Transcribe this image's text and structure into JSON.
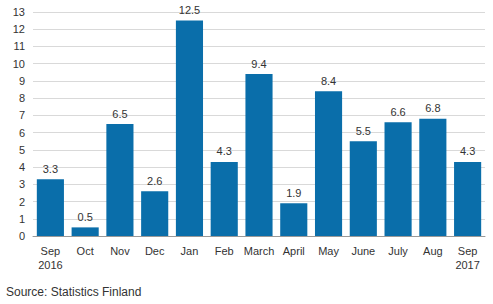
{
  "chart_data": {
    "type": "bar",
    "categories": [
      "Sep\n2016",
      "Oct",
      "Nov",
      "Dec",
      "Jan",
      "Feb",
      "March",
      "April",
      "May",
      "June",
      "July",
      "Aug",
      "Sep\n2017"
    ],
    "values": [
      3.3,
      0.5,
      6.5,
      2.6,
      12.5,
      4.3,
      9.4,
      1.9,
      8.4,
      5.5,
      6.6,
      6.8,
      4.3
    ],
    "color": "#0a6eaa",
    "ylim": [
      0,
      13
    ],
    "yticks": [
      0,
      1,
      2,
      3,
      4,
      5,
      6,
      7,
      8,
      9,
      10,
      11,
      12,
      13
    ],
    "grid": true,
    "data_labels": true,
    "annotations": [
      "Source: Statistics Finland"
    ]
  }
}
